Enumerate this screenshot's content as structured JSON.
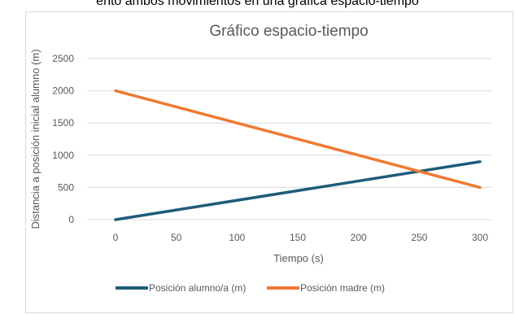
{
  "top_text": "ento ambos movimientos en una gráfica espacio-tiempo",
  "chart_data": {
    "type": "line",
    "title": "Gráfico espacio-tiempo",
    "xlabel": "Tiempo (s)",
    "ylabel": "Distancia a posición inicial alumno (m)",
    "x": [
      0,
      300
    ],
    "xlim": [
      0,
      300
    ],
    "ylim": [
      0,
      2500
    ],
    "x_ticks": [
      "0",
      "50",
      "100",
      "150",
      "200",
      "250",
      "300"
    ],
    "y_ticks": [
      "0",
      "500",
      "1000",
      "1500",
      "2000",
      "2500"
    ],
    "grid": true,
    "legend_position": "bottom",
    "series": [
      {
        "name": "Posición alumno/a (m)",
        "values": [
          0,
          900
        ],
        "color": "#1f5c7a"
      },
      {
        "name": "Posición madre (m)",
        "values": [
          2000,
          500
        ],
        "color": "#ee7a33"
      }
    ]
  }
}
